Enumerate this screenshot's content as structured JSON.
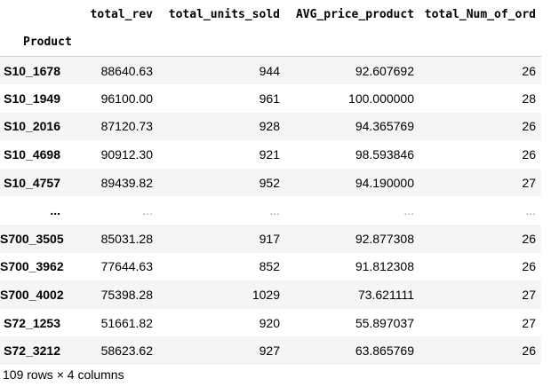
{
  "dataframe": {
    "columns": [
      "total_rev",
      "total_units_sold",
      "AVG_price_product",
      "total_Num_of_ord"
    ],
    "index_name": "Product",
    "rows": [
      {
        "index": "S10_1678",
        "values": [
          "88640.63",
          "944",
          "92.607692",
          "26"
        ]
      },
      {
        "index": "S10_1949",
        "values": [
          "96100.00",
          "961",
          "100.000000",
          "28"
        ]
      },
      {
        "index": "S10_2016",
        "values": [
          "87120.73",
          "928",
          "94.365769",
          "26"
        ]
      },
      {
        "index": "S10_4698",
        "values": [
          "90912.30",
          "921",
          "98.593846",
          "26"
        ]
      },
      {
        "index": "S10_4757",
        "values": [
          "89439.82",
          "952",
          "94.190000",
          "27"
        ]
      },
      {
        "index": "...",
        "values": [
          "...",
          "...",
          "...",
          "..."
        ]
      },
      {
        "index": "S700_3505",
        "values": [
          "85031.28",
          "917",
          "92.877308",
          "26"
        ]
      },
      {
        "index": "S700_3962",
        "values": [
          "77644.63",
          "852",
          "91.812308",
          "26"
        ]
      },
      {
        "index": "S700_4002",
        "values": [
          "75398.28",
          "1029",
          "73.621111",
          "27"
        ]
      },
      {
        "index": "S72_1253",
        "values": [
          "51661.82",
          "920",
          "55.897037",
          "27"
        ]
      },
      {
        "index": "S72_3212",
        "values": [
          "58623.62",
          "927",
          "63.865769",
          "26"
        ]
      }
    ],
    "shape_text": "109 rows × 4 columns"
  }
}
